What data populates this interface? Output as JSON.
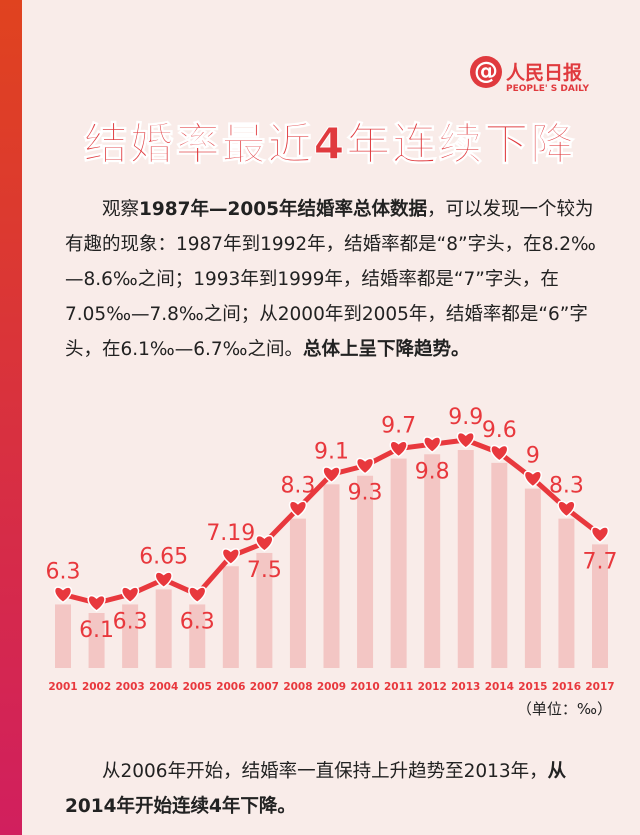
{
  "logo": {
    "name": "人民日报",
    "english": "PEOPLE' S DAILY"
  },
  "title": "结婚率最近4年连续下降",
  "intro": [
    {
      "text": "观察",
      "bold": false
    },
    {
      "text": "1987年—2005年结婚率总体数据",
      "bold": true
    },
    {
      "text": "，可以发现一个较为有趣的现象：1987年到1992年，结婚率都是“8”字头，在8.2‰—8.6‰之间；1993年到1999年，结婚率都是“7”字头，在7.05‰—7.8‰之间；从2000年到2005年，结婚率都是“6”字头，在6.1‰—6.7‰之间。",
      "bold": false
    },
    {
      "text": "总体上呈下降趋势。",
      "bold": true
    }
  ],
  "chart_data": {
    "type": "line",
    "categories": [
      "2001",
      "2002",
      "2003",
      "2004",
      "2005",
      "2006",
      "2007",
      "2008",
      "2009",
      "2010",
      "2011",
      "2012",
      "2013",
      "2014",
      "2015",
      "2016",
      "2017"
    ],
    "values": [
      6.3,
      6.1,
      6.3,
      6.65,
      6.3,
      7.19,
      7.5,
      8.3,
      9.1,
      9.3,
      9.7,
      9.8,
      9.9,
      9.6,
      9,
      8.3,
      7.7
    ],
    "color": "#e8383d",
    "bar_color": "#f3c6c4",
    "unit_note": "（单位：‰）"
  },
  "outro": [
    {
      "text": "从2006年开始，结婚率一直保持上升趋势至2013年，",
      "bold": false
    },
    {
      "text": "从2014年开始连续4年下降。",
      "bold": true
    }
  ]
}
